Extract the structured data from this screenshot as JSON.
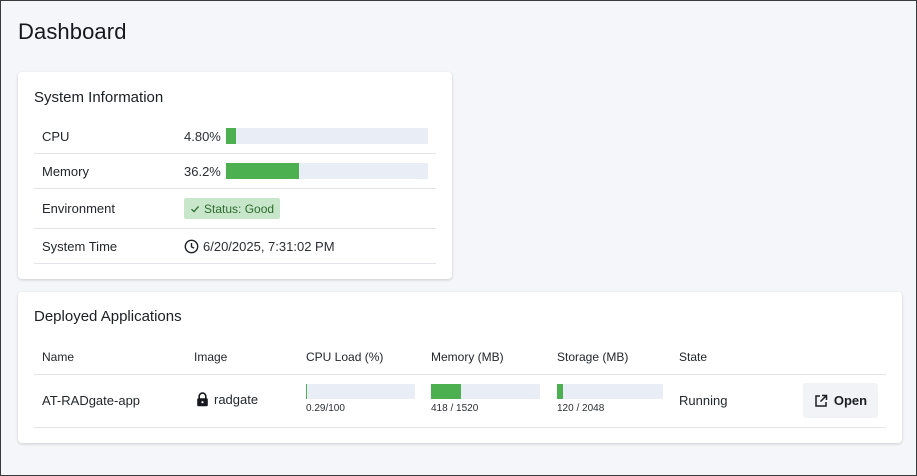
{
  "page": {
    "title": "Dashboard"
  },
  "system_info": {
    "title": "System Information",
    "cpu": {
      "label": "CPU",
      "value": "4.80%",
      "percent": 4.8
    },
    "memory": {
      "label": "Memory",
      "value": "36.2%",
      "percent": 36.2
    },
    "environment": {
      "label": "Environment",
      "status": "Status: Good",
      "icon": "check-icon"
    },
    "system_time": {
      "label": "System Time",
      "value": "6/20/2025, 7:31:02 PM",
      "icon": "clock-icon"
    }
  },
  "apps": {
    "title": "Deployed Applications",
    "columns": [
      "Name",
      "Image",
      "CPU Load (%)",
      "Memory (MB)",
      "Storage (MB)",
      "State"
    ],
    "rows": [
      {
        "name": "AT-RADgate-app",
        "image": "radgate",
        "image_icon": "lock-icon",
        "cpu_caption": "0.29/100",
        "cpu_fraction": 0.0029,
        "mem_caption": "418 / 1520",
        "mem_fraction": 0.275,
        "storage_caption": "120 / 2048",
        "storage_fraction": 0.0586,
        "state": "Running",
        "action_label": "Open",
        "action_icon": "open-external-icon"
      }
    ]
  },
  "colors": {
    "accent_green": "#4caf50",
    "status_bg": "#c8e6c9",
    "track": "#e9edf5"
  }
}
